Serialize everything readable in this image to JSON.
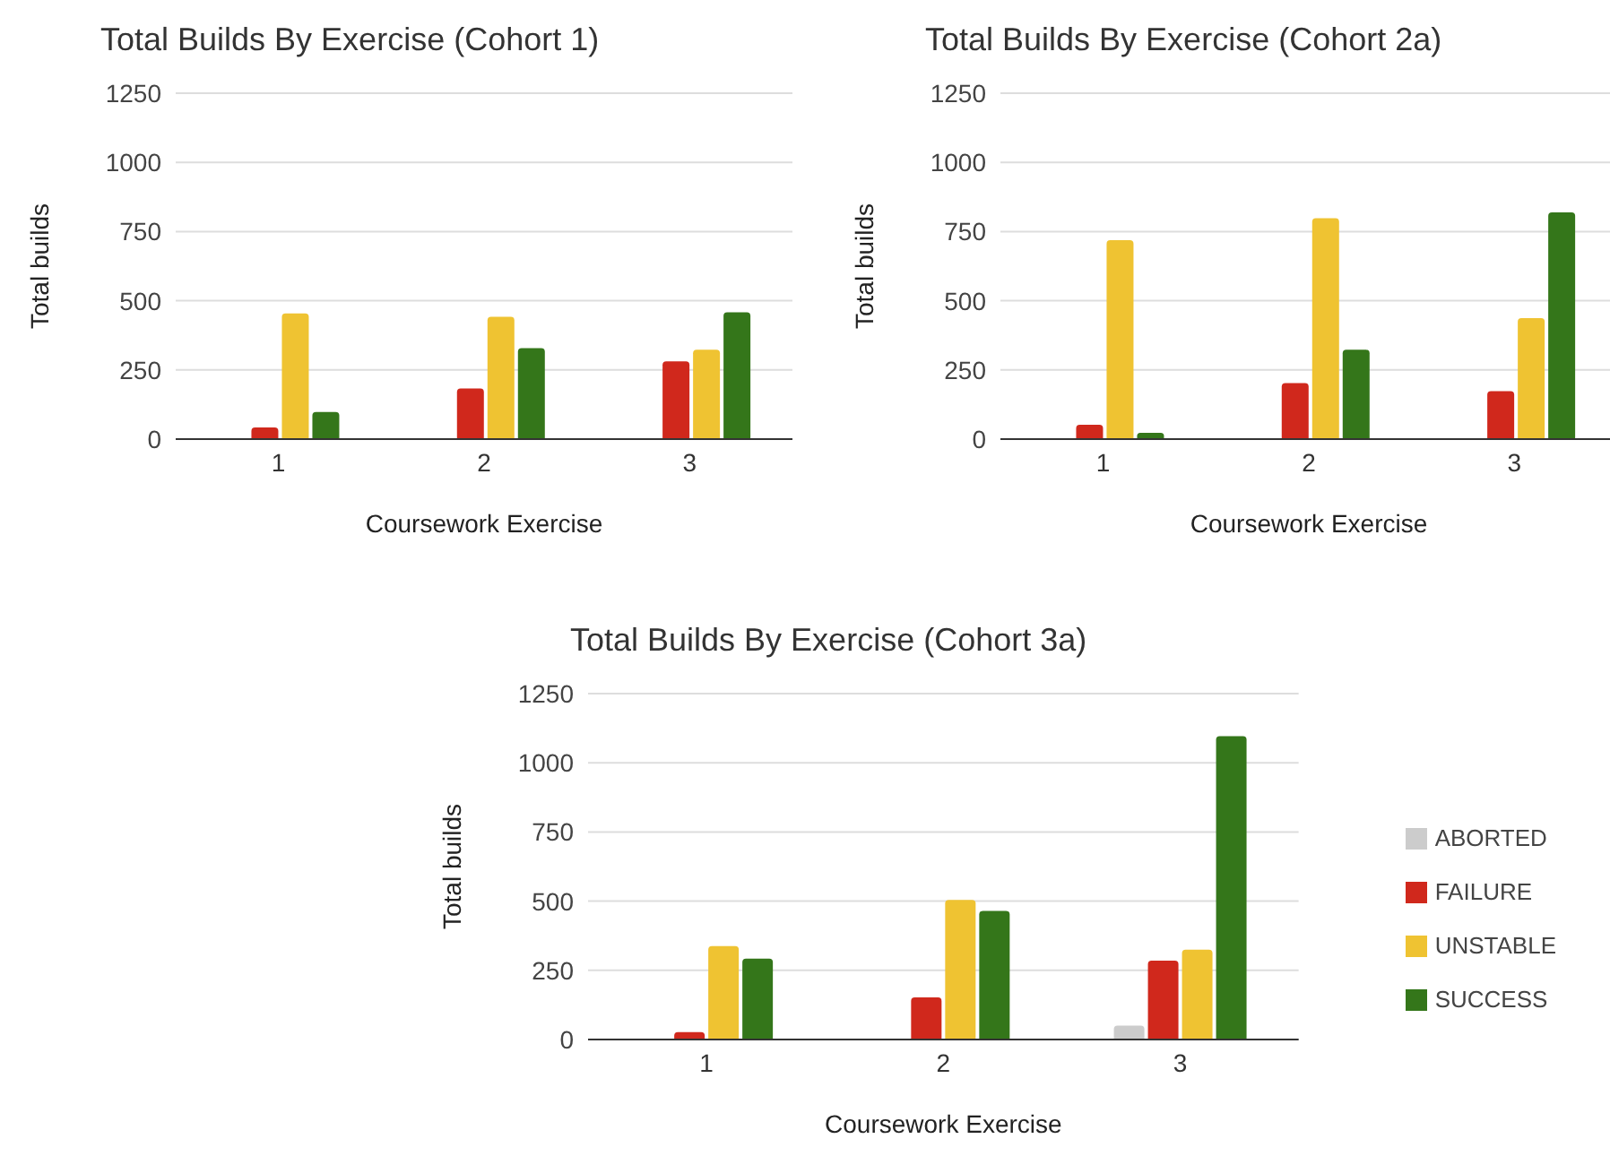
{
  "chart_data": [
    {
      "type": "bar",
      "title": "Total Builds By Exercise (Cohort 1)",
      "xlabel": "Coursework Exercise",
      "ylabel": "Total builds",
      "categories": [
        "1",
        "2",
        "3"
      ],
      "series": [
        {
          "color": "#cccccc",
          "values": [
            0,
            0,
            0
          ]
        },
        {
          "color": "#d0281c",
          "values": [
            42,
            183,
            281
          ]
        },
        {
          "color": "#efc332",
          "values": [
            454,
            442,
            323
          ]
        },
        {
          "color": "#34761a",
          "values": [
            98,
            329,
            458
          ]
        }
      ],
      "ylim": [
        0,
        1250
      ],
      "yticks": [
        0,
        250,
        500,
        750,
        1000,
        1250
      ],
      "grid": "y",
      "legend": false
    },
    {
      "type": "bar",
      "title": "Total Builds By Exercise (Cohort 2a)",
      "xlabel": "Coursework Exercise",
      "ylabel": "Total builds",
      "categories": [
        "1",
        "2",
        "3"
      ],
      "series": [
        {
          "color": "#cccccc",
          "values": [
            0,
            0,
            0
          ]
        },
        {
          "color": "#d0281c",
          "values": [
            52,
            202,
            173
          ]
        },
        {
          "color": "#efc332",
          "values": [
            719,
            798,
            437
          ]
        },
        {
          "color": "#34761a",
          "values": [
            23,
            323,
            819
          ]
        }
      ],
      "ylim": [
        0,
        1250
      ],
      "yticks": [
        0,
        250,
        500,
        750,
        1000,
        1250
      ],
      "grid": "y",
      "legend": false
    },
    {
      "type": "bar",
      "title": "Total Builds By Exercise (Cohort 3a)",
      "xlabel": "Coursework Exercise",
      "ylabel": "Total builds",
      "categories": [
        "1",
        "2",
        "3"
      ],
      "series": [
        {
          "name": "ABORTED",
          "color": "#cccccc",
          "values": [
            0,
            0,
            50
          ]
        },
        {
          "name": "FAILURE",
          "color": "#d0281c",
          "values": [
            27,
            152,
            285
          ]
        },
        {
          "name": "UNSTABLE",
          "color": "#efc332",
          "values": [
            338,
            504,
            325
          ]
        },
        {
          "name": "SUCCESS",
          "color": "#34761a",
          "values": [
            292,
            465,
            1096
          ]
        }
      ],
      "ylim": [
        0,
        1250
      ],
      "yticks": [
        0,
        250,
        500,
        750,
        1000,
        1250
      ],
      "grid": "y",
      "legend": "right"
    }
  ]
}
